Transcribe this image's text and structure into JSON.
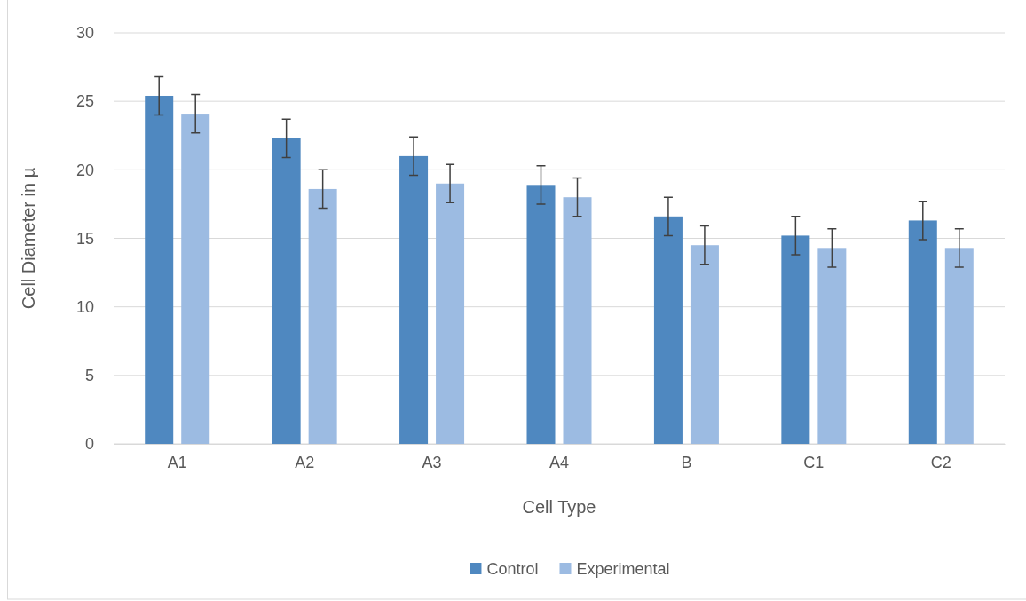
{
  "chart_data": {
    "type": "bar",
    "xlabel": "Cell Type",
    "ylabel": "Cell Diameter in µ",
    "categories": [
      "A1",
      "A2",
      "A3",
      "A4",
      "B",
      "C1",
      "C2"
    ],
    "series": [
      {
        "name": "Control",
        "color": "#4f88c0",
        "values": [
          25.4,
          22.3,
          21.0,
          18.9,
          16.6,
          15.2,
          16.3
        ],
        "errors": [
          1.4,
          1.4,
          1.4,
          1.4,
          1.4,
          1.4,
          1.4
        ]
      },
      {
        "name": "Experimental",
        "color": "#9cbbe2",
        "values": [
          24.1,
          18.6,
          19.0,
          18.0,
          14.5,
          14.3,
          14.3
        ],
        "errors": [
          1.4,
          1.4,
          1.4,
          1.4,
          1.4,
          1.4,
          1.4
        ]
      }
    ],
    "ylim": [
      0,
      30
    ],
    "yticks": [
      0,
      5,
      10,
      15,
      20,
      25,
      30
    ],
    "grid": "y",
    "legend": "bottom"
  }
}
